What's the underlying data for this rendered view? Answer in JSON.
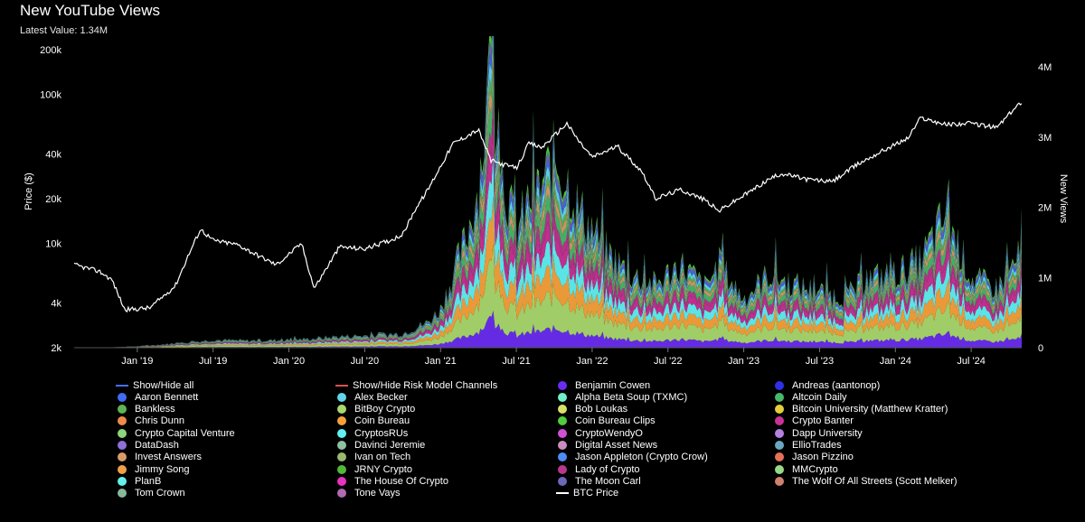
{
  "header": {
    "title": "New YouTube Views",
    "latest_label": "Latest Value:",
    "latest_value": "1.34M"
  },
  "chart_data": {
    "type": "area",
    "title": "New YouTube Views",
    "ylabel_left": "Price ($)",
    "ylabel_right": "New Views",
    "left_axis": {
      "scale": "log",
      "range": [
        2000,
        200000
      ],
      "ticks": [
        2000,
        4000,
        10000,
        20000,
        40000,
        100000,
        200000
      ],
      "tick_labels": [
        "2k",
        "4k",
        "10k",
        "20k",
        "40k",
        "100k",
        "200k"
      ]
    },
    "right_axis": {
      "scale": "linear",
      "range": [
        0,
        4000000
      ],
      "ticks": [
        0,
        1000000,
        2000000,
        3000000,
        4000000
      ],
      "tick_labels": [
        "0",
        "1M",
        "2M",
        "3M",
        "4M"
      ]
    },
    "x_axis": {
      "range": [
        "2018-08",
        "2024-11"
      ],
      "ticks": [
        "2019-01",
        "2019-07",
        "2020-01",
        "2020-07",
        "2021-01",
        "2021-07",
        "2022-01",
        "2022-07",
        "2023-01",
        "2023-07",
        "2024-01",
        "2024-07"
      ],
      "tick_labels": [
        "Jan '19",
        "Jul '19",
        "Jan '20",
        "Jul '20",
        "Jan '21",
        "Jul '21",
        "Jan '22",
        "Jul '22",
        "Jan '23",
        "Jul '23",
        "Jan '24",
        "Jul '24"
      ]
    },
    "total_views": {
      "x": [
        "2018-08",
        "2018-10",
        "2019-01",
        "2019-04",
        "2019-07",
        "2019-10",
        "2020-01",
        "2020-03",
        "2020-05",
        "2020-07",
        "2020-10",
        "2020-12",
        "2021-01",
        "2021-02",
        "2021-03",
        "2021-04",
        "2021-05",
        "2021-06",
        "2021-07",
        "2021-08",
        "2021-09",
        "2021-10",
        "2021-11",
        "2021-12",
        "2022-01",
        "2022-02",
        "2022-04",
        "2022-06",
        "2022-08",
        "2022-10",
        "2022-11",
        "2023-01",
        "2023-03",
        "2023-05",
        "2023-07",
        "2023-09",
        "2023-11",
        "2024-01",
        "2024-03",
        "2024-05",
        "2024-07",
        "2024-09",
        "2024-11"
      ],
      "y": [
        0,
        0,
        20000,
        60000,
        110000,
        100000,
        110000,
        130000,
        160000,
        170000,
        200000,
        360000,
        550000,
        1050000,
        1550000,
        2300000,
        4000000,
        2400000,
        1650000,
        2100000,
        2300000,
        2700000,
        2400000,
        1950000,
        1700000,
        1400000,
        1050000,
        900000,
        1200000,
        850000,
        1200000,
        700000,
        1050000,
        900000,
        800000,
        720000,
        1000000,
        1050000,
        1250000,
        1900000,
        1000000,
        850000,
        1340000
      ]
    },
    "series_stack_order": [
      "Benjamin Cowen",
      "BitBoy Crypto",
      "Coin Bureau",
      "CryptosRUs",
      "Crypto Banter",
      "Lady of Crypto",
      "Altcoin Daily",
      "Invest Answers",
      "Bankless",
      "Alex Becker",
      "Aaron Bennett",
      "The Moon Carl",
      "Coin Bureau Clips"
    ],
    "btc_price": {
      "name": "BTC Price",
      "x": [
        "2018-08",
        "2018-10",
        "2018-11",
        "2018-12",
        "2019-02",
        "2019-04",
        "2019-05",
        "2019-06",
        "2019-07",
        "2019-09",
        "2019-10",
        "2019-12",
        "2020-02",
        "2020-03",
        "2020-05",
        "2020-07",
        "2020-09",
        "2020-10",
        "2020-11",
        "2020-12",
        "2021-01",
        "2021-02",
        "2021-04",
        "2021-05",
        "2021-07",
        "2021-08",
        "2021-09",
        "2021-11",
        "2021-12",
        "2022-01",
        "2022-03",
        "2022-05",
        "2022-06",
        "2022-08",
        "2022-10",
        "2022-11",
        "2023-01",
        "2023-03",
        "2023-04",
        "2023-06",
        "2023-08",
        "2023-10",
        "2023-12",
        "2024-02",
        "2024-03",
        "2024-05",
        "2024-07",
        "2024-09",
        "2024-11"
      ],
      "y": [
        7200,
        6500,
        5700,
        3600,
        3700,
        5200,
        8200,
        12500,
        10500,
        9800,
        8800,
        7200,
        10000,
        5000,
        9500,
        9200,
        10500,
        11500,
        17000,
        23000,
        33000,
        47000,
        58000,
        36000,
        32000,
        47000,
        44000,
        64000,
        48000,
        38000,
        45000,
        30000,
        20000,
        23000,
        19500,
        16500,
        21000,
        27000,
        29500,
        27000,
        26000,
        34000,
        42000,
        51000,
        70000,
        63000,
        64000,
        60000,
        90000
      ]
    },
    "legend": [
      {
        "name": "Show/Hide all",
        "color": "#4a6ef5",
        "kind": "line"
      },
      {
        "name": "Show/Hide Risk Model Channels",
        "color": "#d9534f",
        "kind": "line"
      },
      {
        "name": "Benjamin Cowen",
        "color": "#6a2df0",
        "kind": "dot"
      },
      {
        "name": "Andreas (aantonop)",
        "color": "#2f2fe6",
        "kind": "dot"
      },
      {
        "name": "Aaron Bennett",
        "color": "#3f6cf2",
        "kind": "dot"
      },
      {
        "name": "Alex Becker",
        "color": "#62d6e8",
        "kind": "dot"
      },
      {
        "name": "Alpha Beta Soup (TXMC)",
        "color": "#6ff0c9",
        "kind": "dot"
      },
      {
        "name": "Altcoin Daily",
        "color": "#47b86a",
        "kind": "dot"
      },
      {
        "name": "Bankless",
        "color": "#5fb355",
        "kind": "dot"
      },
      {
        "name": "BitBoy Crypto",
        "color": "#a9d86e",
        "kind": "dot"
      },
      {
        "name": "Bob Loukas",
        "color": "#d9e06a",
        "kind": "dot"
      },
      {
        "name": "Bitcoin University (Matthew Kratter)",
        "color": "#e2cf3c",
        "kind": "dot"
      },
      {
        "name": "Chris Dunn",
        "color": "#ee8a4a",
        "kind": "dot"
      },
      {
        "name": "Coin Bureau",
        "color": "#f7a13c",
        "kind": "dot"
      },
      {
        "name": "Coin Bureau Clips",
        "color": "#52cc3c",
        "kind": "dot"
      },
      {
        "name": "Crypto Banter",
        "color": "#c83296",
        "kind": "dot"
      },
      {
        "name": "Crypto Capital Venture",
        "color": "#8cd57a",
        "kind": "dot"
      },
      {
        "name": "CryptosRUs",
        "color": "#5ff0f2",
        "kind": "dot"
      },
      {
        "name": "CryptoWendyO",
        "color": "#d24fd6",
        "kind": "dot"
      },
      {
        "name": "Dapp University",
        "color": "#b580e4",
        "kind": "dot"
      },
      {
        "name": "DataDash",
        "color": "#8f6fd8",
        "kind": "dot"
      },
      {
        "name": "Davinci Jeremie",
        "color": "#8fc0a0",
        "kind": "dot"
      },
      {
        "name": "Digital Asset News",
        "color": "#c98dc0",
        "kind": "dot"
      },
      {
        "name": "EllioTrades",
        "color": "#6aa8c0",
        "kind": "dot"
      },
      {
        "name": "Invest Answers",
        "color": "#d99a6a",
        "kind": "dot"
      },
      {
        "name": "Ivan on Tech",
        "color": "#9bb870",
        "kind": "dot"
      },
      {
        "name": "Jason Appleton (Crypto Crow)",
        "color": "#4e8ef2",
        "kind": "dot"
      },
      {
        "name": "Jason Pizzino",
        "color": "#e6705a",
        "kind": "dot"
      },
      {
        "name": "Jimmy Song",
        "color": "#f0a04a",
        "kind": "dot"
      },
      {
        "name": "JRNY Crypto",
        "color": "#52b83a",
        "kind": "dot"
      },
      {
        "name": "Lady of Crypto",
        "color": "#b8388c",
        "kind": "dot"
      },
      {
        "name": "MMCrypto",
        "color": "#98d888",
        "kind": "dot"
      },
      {
        "name": "PlanB",
        "color": "#62f2ea",
        "kind": "dot"
      },
      {
        "name": "The House Of Crypto",
        "color": "#e832c0",
        "kind": "dot"
      },
      {
        "name": "The Moon Carl",
        "color": "#6a68b8",
        "kind": "dot"
      },
      {
        "name": "The Wolf Of All Streets (Scott Melker)",
        "color": "#d08070",
        "kind": "dot"
      },
      {
        "name": "Tom Crown",
        "color": "#88b898",
        "kind": "dot"
      },
      {
        "name": "Tone Vays",
        "color": "#b06ab0",
        "kind": "dot"
      },
      {
        "name": "BTC Price",
        "color": "#ffffff",
        "kind": "line"
      }
    ]
  }
}
